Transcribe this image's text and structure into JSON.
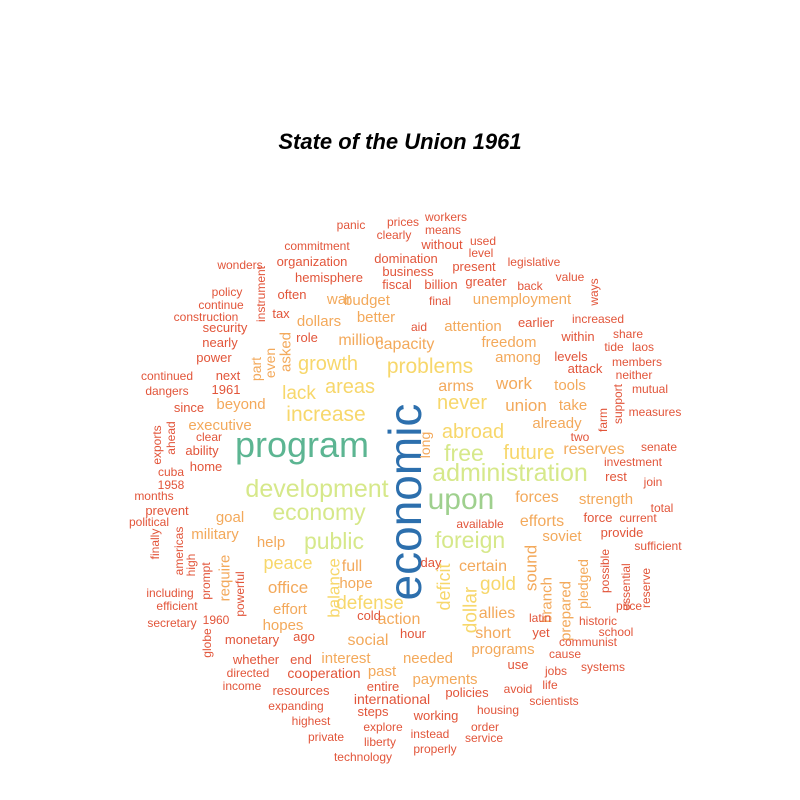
{
  "title": "State of the Union 1961",
  "palette": {
    "blue": "#2c6fad",
    "teal": "#5cb592",
    "green": "#9fd08e",
    "lime": "#d6e88a",
    "yellow": "#f7d76b",
    "orange": "#f3a95b",
    "red": "#e2553a"
  },
  "words": [
    {
      "text": "economic",
      "color": "blue"
    },
    {
      "text": "program",
      "color": "teal"
    },
    {
      "text": "upon",
      "color": "green"
    },
    {
      "text": "development",
      "color": "lime"
    },
    {
      "text": "administration",
      "color": "lime"
    },
    {
      "text": "economy",
      "color": "lime"
    },
    {
      "text": "free",
      "color": "lime"
    },
    {
      "text": "foreign",
      "color": "lime"
    },
    {
      "text": "public",
      "color": "lime"
    },
    {
      "text": "increase",
      "color": "yellow"
    },
    {
      "text": "problems",
      "color": "yellow"
    },
    {
      "text": "growth",
      "color": "yellow"
    },
    {
      "text": "never",
      "color": "yellow"
    },
    {
      "text": "abroad",
      "color": "yellow"
    },
    {
      "text": "future",
      "color": "yellow"
    },
    {
      "text": "areas",
      "color": "yellow"
    },
    {
      "text": "lack",
      "color": "yellow"
    },
    {
      "text": "defense",
      "color": "yellow"
    },
    {
      "text": "balance",
      "color": "yellow"
    },
    {
      "text": "deficit",
      "color": "yellow"
    },
    {
      "text": "dollar",
      "color": "yellow"
    },
    {
      "text": "gold",
      "color": "yellow"
    },
    {
      "text": "peace",
      "color": "yellow"
    },
    {
      "text": "sound",
      "color": "orange"
    },
    {
      "text": "work",
      "color": "orange"
    },
    {
      "text": "union",
      "color": "orange"
    },
    {
      "text": "arms",
      "color": "orange"
    },
    {
      "text": "capacity",
      "color": "orange"
    },
    {
      "text": "million",
      "color": "orange"
    },
    {
      "text": "forces",
      "color": "orange"
    },
    {
      "text": "efforts",
      "color": "orange"
    },
    {
      "text": "office",
      "color": "orange"
    },
    {
      "text": "certain",
      "color": "orange"
    },
    {
      "text": "full",
      "color": "orange"
    },
    {
      "text": "help",
      "color": "orange"
    },
    {
      "text": "hope",
      "color": "orange"
    },
    {
      "text": "action",
      "color": "orange"
    },
    {
      "text": "social",
      "color": "orange"
    },
    {
      "text": "allies",
      "color": "orange"
    },
    {
      "text": "short",
      "color": "orange"
    },
    {
      "text": "branch",
      "color": "orange"
    },
    {
      "text": "prepared",
      "color": "orange"
    },
    {
      "text": "reserves",
      "color": "orange"
    },
    {
      "text": "strength",
      "color": "orange"
    },
    {
      "text": "executive",
      "color": "orange"
    },
    {
      "text": "beyond",
      "color": "orange"
    },
    {
      "text": "military",
      "color": "orange"
    },
    {
      "text": "goal",
      "color": "orange"
    },
    {
      "text": "effort",
      "color": "orange"
    },
    {
      "text": "hopes",
      "color": "orange"
    },
    {
      "text": "interest",
      "color": "orange"
    },
    {
      "text": "needed",
      "color": "orange"
    },
    {
      "text": "programs",
      "color": "orange"
    },
    {
      "text": "payments",
      "color": "orange"
    },
    {
      "text": "past",
      "color": "orange"
    },
    {
      "text": "budget",
      "color": "orange"
    },
    {
      "text": "war",
      "color": "orange"
    },
    {
      "text": "dollars",
      "color": "orange"
    },
    {
      "text": "better",
      "color": "orange"
    },
    {
      "text": "unemployment",
      "color": "orange"
    },
    {
      "text": "attention",
      "color": "orange"
    },
    {
      "text": "freedom",
      "color": "orange"
    },
    {
      "text": "among",
      "color": "orange"
    },
    {
      "text": "take",
      "color": "orange"
    },
    {
      "text": "tools",
      "color": "orange"
    },
    {
      "text": "already",
      "color": "orange"
    },
    {
      "text": "soviet",
      "color": "orange"
    },
    {
      "text": "require",
      "color": "orange"
    },
    {
      "text": "asked",
      "color": "orange"
    },
    {
      "text": "part",
      "color": "orange"
    },
    {
      "text": "pledged",
      "color": "orange"
    },
    {
      "text": "even",
      "color": "orange"
    },
    {
      "text": "long",
      "color": "orange"
    },
    {
      "text": "ability",
      "color": "red"
    },
    {
      "text": "home",
      "color": "red"
    },
    {
      "text": "prevent",
      "color": "red"
    },
    {
      "text": "since",
      "color": "red"
    },
    {
      "text": "1961",
      "color": "red"
    },
    {
      "text": "power",
      "color": "red"
    },
    {
      "text": "next",
      "color": "red"
    },
    {
      "text": "nearly",
      "color": "red"
    },
    {
      "text": "security",
      "color": "red"
    },
    {
      "text": "tax",
      "color": "red"
    },
    {
      "text": "role",
      "color": "red"
    },
    {
      "text": "often",
      "color": "red"
    },
    {
      "text": "hemisphere",
      "color": "red"
    },
    {
      "text": "organization",
      "color": "red"
    },
    {
      "text": "domination",
      "color": "red"
    },
    {
      "text": "business",
      "color": "red"
    },
    {
      "text": "fiscal",
      "color": "red"
    },
    {
      "text": "billion",
      "color": "red"
    },
    {
      "text": "greater",
      "color": "red"
    },
    {
      "text": "present",
      "color": "red"
    },
    {
      "text": "without",
      "color": "red"
    },
    {
      "text": "level",
      "color": "red"
    },
    {
      "text": "used",
      "color": "red"
    },
    {
      "text": "means",
      "color": "red"
    },
    {
      "text": "workers",
      "color": "red"
    },
    {
      "text": "prices",
      "color": "red"
    },
    {
      "text": "clearly",
      "color": "red"
    },
    {
      "text": "panic",
      "color": "red"
    },
    {
      "text": "commitment",
      "color": "red"
    },
    {
      "text": "wonders",
      "color": "red"
    },
    {
      "text": "policy",
      "color": "red"
    },
    {
      "text": "continue",
      "color": "red"
    },
    {
      "text": "construction",
      "color": "red"
    },
    {
      "text": "continued",
      "color": "red"
    },
    {
      "text": "dangers",
      "color": "red"
    },
    {
      "text": "exports",
      "color": "red"
    },
    {
      "text": "ahead",
      "color": "red"
    },
    {
      "text": "clear",
      "color": "red"
    },
    {
      "text": "cuba",
      "color": "red"
    },
    {
      "text": "1958",
      "color": "red"
    },
    {
      "text": "months",
      "color": "red"
    },
    {
      "text": "political",
      "color": "red"
    },
    {
      "text": "finally",
      "color": "red"
    },
    {
      "text": "americas",
      "color": "red"
    },
    {
      "text": "high",
      "color": "red"
    },
    {
      "text": "prompt",
      "color": "red"
    },
    {
      "text": "powerful",
      "color": "red"
    },
    {
      "text": "including",
      "color": "red"
    },
    {
      "text": "efficient",
      "color": "red"
    },
    {
      "text": "secretary",
      "color": "red"
    },
    {
      "text": "1960",
      "color": "red"
    },
    {
      "text": "globe",
      "color": "red"
    },
    {
      "text": "monetary",
      "color": "red"
    },
    {
      "text": "ago",
      "color": "red"
    },
    {
      "text": "whether",
      "color": "red"
    },
    {
      "text": "end",
      "color": "red"
    },
    {
      "text": "directed",
      "color": "red"
    },
    {
      "text": "cooperation",
      "color": "red"
    },
    {
      "text": "income",
      "color": "red"
    },
    {
      "text": "resources",
      "color": "red"
    },
    {
      "text": "expanding",
      "color": "red"
    },
    {
      "text": "highest",
      "color": "red"
    },
    {
      "text": "private",
      "color": "red"
    },
    {
      "text": "entire",
      "color": "red"
    },
    {
      "text": "international",
      "color": "red"
    },
    {
      "text": "steps",
      "color": "red"
    },
    {
      "text": "explore",
      "color": "red"
    },
    {
      "text": "liberty",
      "color": "red"
    },
    {
      "text": "technology",
      "color": "red"
    },
    {
      "text": "working",
      "color": "red"
    },
    {
      "text": "instead",
      "color": "red"
    },
    {
      "text": "properly",
      "color": "red"
    },
    {
      "text": "policies",
      "color": "red"
    },
    {
      "text": "housing",
      "color": "red"
    },
    {
      "text": "order",
      "color": "red"
    },
    {
      "text": "service",
      "color": "red"
    },
    {
      "text": "use",
      "color": "red"
    },
    {
      "text": "avoid",
      "color": "red"
    },
    {
      "text": "jobs",
      "color": "red"
    },
    {
      "text": "life",
      "color": "red"
    },
    {
      "text": "scientists",
      "color": "red"
    },
    {
      "text": "cause",
      "color": "red"
    },
    {
      "text": "systems",
      "color": "red"
    },
    {
      "text": "communist",
      "color": "red"
    },
    {
      "text": "school",
      "color": "red"
    },
    {
      "text": "historic",
      "color": "red"
    },
    {
      "text": "price",
      "color": "red"
    },
    {
      "text": "possible",
      "color": "red"
    },
    {
      "text": "essential",
      "color": "red"
    },
    {
      "text": "reserve",
      "color": "red"
    },
    {
      "text": "provide",
      "color": "red"
    },
    {
      "text": "sufficient",
      "color": "red"
    },
    {
      "text": "current",
      "color": "red"
    },
    {
      "text": "force",
      "color": "red"
    },
    {
      "text": "total",
      "color": "red"
    },
    {
      "text": "join",
      "color": "red"
    },
    {
      "text": "rest",
      "color": "red"
    },
    {
      "text": "investment",
      "color": "red"
    },
    {
      "text": "senate",
      "color": "red"
    },
    {
      "text": "two",
      "color": "red"
    },
    {
      "text": "measures",
      "color": "red"
    },
    {
      "text": "mutual",
      "color": "red"
    },
    {
      "text": "neither",
      "color": "red"
    },
    {
      "text": "members",
      "color": "red"
    },
    {
      "text": "laos",
      "color": "red"
    },
    {
      "text": "tide",
      "color": "red"
    },
    {
      "text": "share",
      "color": "red"
    },
    {
      "text": "increased",
      "color": "red"
    },
    {
      "text": "support",
      "color": "red"
    },
    {
      "text": "farm",
      "color": "red"
    },
    {
      "text": "attack",
      "color": "red"
    },
    {
      "text": "levels",
      "color": "red"
    },
    {
      "text": "within",
      "color": "red"
    },
    {
      "text": "earlier",
      "color": "red"
    },
    {
      "text": "value",
      "color": "red"
    },
    {
      "text": "ways",
      "color": "red"
    },
    {
      "text": "back",
      "color": "red"
    },
    {
      "text": "legislative",
      "color": "red"
    },
    {
      "text": "final",
      "color": "red"
    },
    {
      "text": "aid",
      "color": "red"
    },
    {
      "text": "instrument",
      "color": "red"
    },
    {
      "text": "available",
      "color": "red"
    },
    {
      "text": "day",
      "color": "red"
    },
    {
      "text": "cold",
      "color": "red"
    },
    {
      "text": "hour",
      "color": "red"
    },
    {
      "text": "latin",
      "color": "red"
    },
    {
      "text": "yet",
      "color": "red"
    }
  ]
}
